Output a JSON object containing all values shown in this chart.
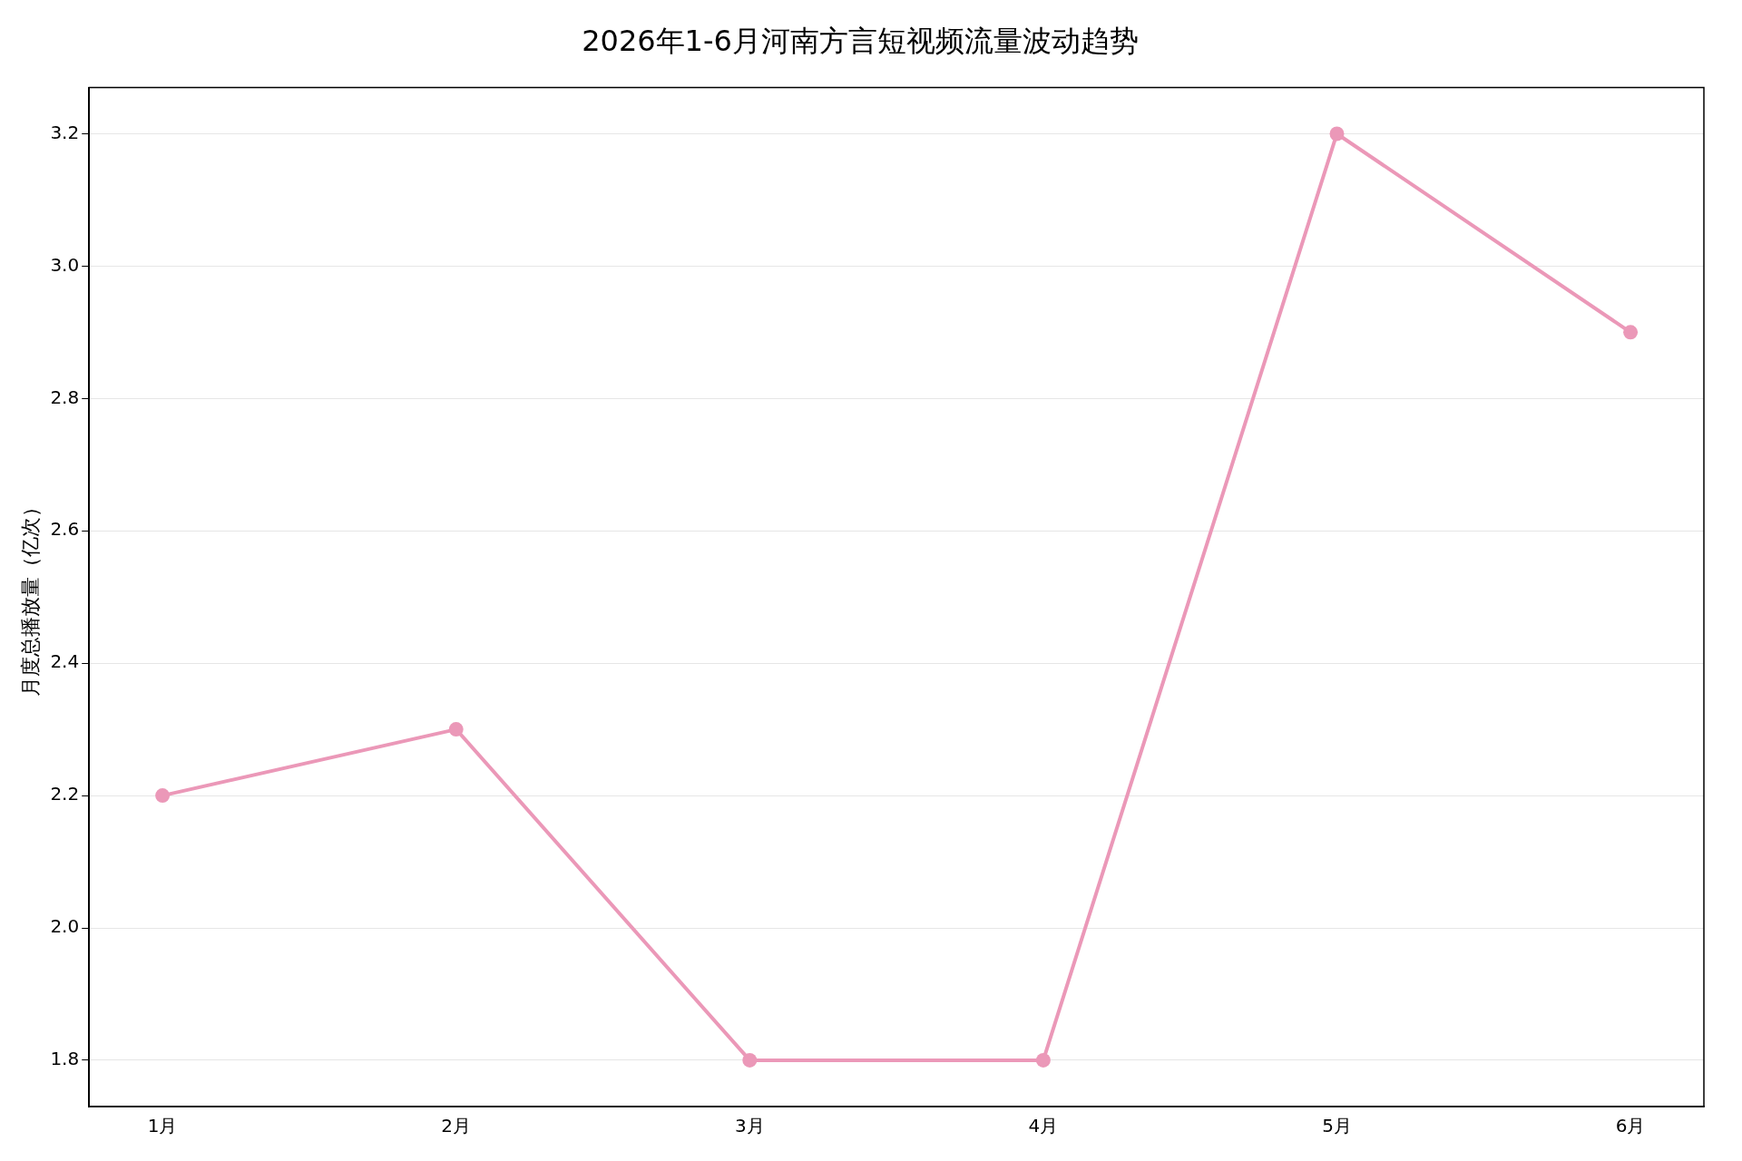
{
  "chart_data": {
    "type": "line",
    "title": "2026年1-6月河南方言短视频流量波动趋势",
    "ylabel": "月度总播放量（亿次）",
    "categories": [
      "1月",
      "2月",
      "3月",
      "4月",
      "5月",
      "6月"
    ],
    "series": [
      {
        "color": "#eb98b8",
        "values": [
          2.2,
          2.3,
          1.8,
          1.8,
          3.2,
          2.9
        ]
      }
    ],
    "ylim": [
      1.73,
      3.27
    ],
    "yticks": [
      {
        "value": 1.8,
        "label": "1.8"
      },
      {
        "value": 2.0,
        "label": "2.0"
      },
      {
        "value": 2.2,
        "label": "2.2"
      },
      {
        "value": 2.4,
        "label": "2.4"
      },
      {
        "value": 2.6,
        "label": "2.6"
      },
      {
        "value": 2.8,
        "label": "2.8"
      },
      {
        "value": 3.0,
        "label": "3.0"
      },
      {
        "value": 3.2,
        "label": "3.2"
      }
    ],
    "grid": "y",
    "legend": false,
    "marker": "circle",
    "line_style": "solid"
  }
}
